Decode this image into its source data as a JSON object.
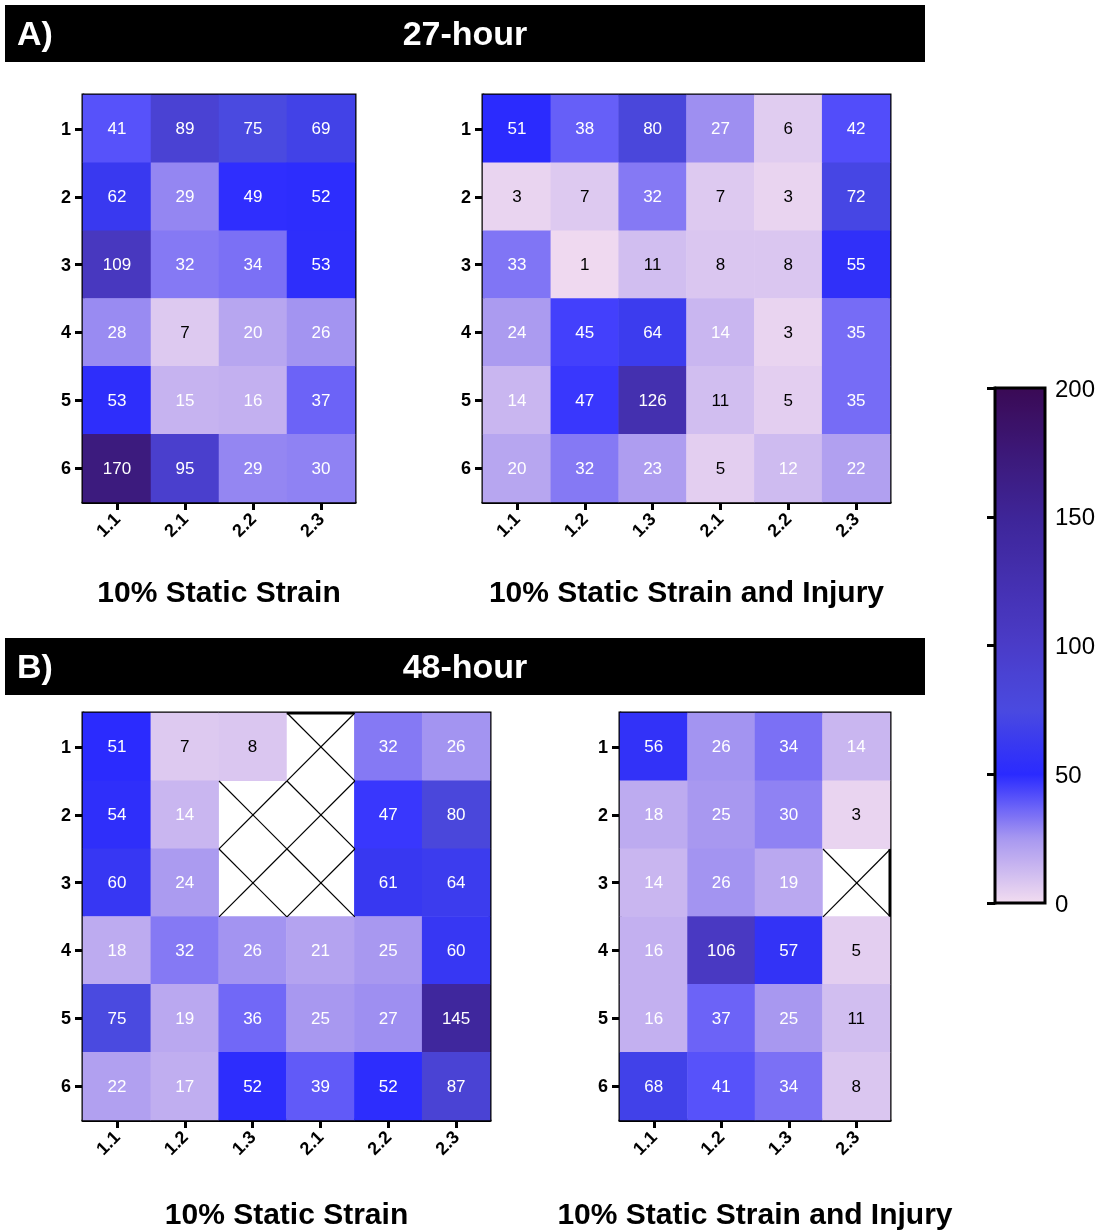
{
  "chart_data": [
    {
      "type": "heatmap",
      "annotations": [
        "A)"
      ],
      "xlabel": "10% Static Strain",
      "categories": [
        "1.1",
        "2.1",
        "2.2",
        "2.3"
      ],
      "y_categories": [
        "1",
        "2",
        "3",
        "4",
        "5",
        "6"
      ],
      "cells": [
        [
          41,
          89,
          75,
          69
        ],
        [
          62,
          29,
          49,
          52
        ],
        [
          109,
          32,
          34,
          53
        ],
        [
          28,
          7,
          20,
          26
        ],
        [
          53,
          15,
          16,
          37
        ],
        [
          170,
          95,
          29,
          30
        ]
      ],
      "data_labels": true
    },
    {
      "type": "heatmap",
      "title": "27-hour",
      "xlabel": "10% Static Strain and Injury",
      "categories": [
        "1.1",
        "1.2",
        "1.3",
        "2.1",
        "2.2",
        "2.3"
      ],
      "y_categories": [
        "1",
        "2",
        "3",
        "4",
        "5",
        "6"
      ],
      "cells": [
        [
          51,
          38,
          80,
          27,
          6,
          42
        ],
        [
          3,
          7,
          32,
          7,
          3,
          72
        ],
        [
          33,
          1,
          11,
          8,
          8,
          55
        ],
        [
          24,
          45,
          64,
          14,
          3,
          35
        ],
        [
          14,
          47,
          126,
          11,
          5,
          35
        ],
        [
          20,
          32,
          23,
          5,
          12,
          22
        ]
      ],
      "clim": [
        0,
        200
      ],
      "cticks": [
        0,
        50,
        100,
        150,
        200
      ],
      "data_labels": true
    },
    {
      "type": "heatmap",
      "title": "48-hour",
      "annotations": [
        "B)"
      ],
      "xlabel": "10% Static Strain",
      "categories": [
        "1.1",
        "1.2",
        "1.3",
        "2.1",
        "2.2",
        "2.3"
      ],
      "y_categories": [
        "1",
        "2",
        "3",
        "4",
        "5",
        "6"
      ],
      "cells": [
        [
          51,
          7,
          8,
          null,
          32,
          26
        ],
        [
          54,
          14,
          null,
          null,
          47,
          80
        ],
        [
          60,
          24,
          null,
          null,
          61,
          64
        ],
        [
          18,
          32,
          26,
          21,
          25,
          60
        ],
        [
          75,
          19,
          36,
          25,
          27,
          145
        ],
        [
          22,
          17,
          52,
          39,
          52,
          87
        ]
      ],
      "data_labels": true
    },
    {
      "type": "heatmap",
      "xlabel": "10% Static Strain and Injury",
      "categories": [
        "1.1",
        "1.2",
        "1.3",
        "2.3"
      ],
      "y_categories": [
        "1",
        "2",
        "3",
        "4",
        "5",
        "6"
      ],
      "cells": [
        [
          56,
          26,
          34,
          14
        ],
        [
          18,
          25,
          30,
          3
        ],
        [
          14,
          26,
          19,
          null
        ],
        [
          16,
          106,
          57,
          5
        ],
        [
          16,
          37,
          25,
          11
        ],
        [
          68,
          41,
          34,
          8
        ]
      ],
      "data_labels": true
    }
  ]
}
